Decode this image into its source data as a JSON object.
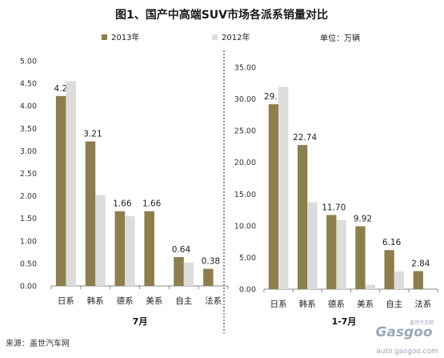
{
  "title": "图1、国产中高端SUV市场各派系销量对比",
  "unit_label": "单位：万辆",
  "source": "来源：盖世汽车网",
  "watermark": {
    "logo": "Gasgoo",
    "small_text": "盖世汽车网",
    "url": "auto.gasgoo.com"
  },
  "colors": {
    "series_2013": "#8c7f4b",
    "series_2012": "#dcdcdc",
    "divider": "#222222"
  },
  "chart_data": [
    {
      "type": "bar",
      "xlabel": "7月",
      "ylabel": "",
      "categories": [
        "日系",
        "韩系",
        "德系",
        "美系",
        "自主",
        "法系"
      ],
      "ylim": [
        0,
        5
      ],
      "yticks": [
        "5.00",
        "4.50",
        "4.00",
        "3.50",
        "3.00",
        "2.50",
        "2.00",
        "1.50",
        "1.00",
        "0.50",
        "0.00"
      ],
      "series": [
        {
          "name": "2013年",
          "values": [
            4.22,
            3.21,
            1.66,
            1.66,
            0.64,
            0.38
          ],
          "labels": [
            "4.22",
            "3.21",
            "1.66",
            "1.66",
            "0.64",
            "0.38"
          ]
        },
        {
          "name": "2012年",
          "values": [
            4.55,
            2.02,
            1.55,
            0.0,
            0.52,
            0.0
          ]
        }
      ]
    },
    {
      "type": "bar",
      "xlabel": "1-7月",
      "ylabel": "",
      "categories": [
        "日系",
        "韩系",
        "德系",
        "美系",
        "自主",
        "法系"
      ],
      "ylim": [
        0,
        35
      ],
      "yticks": [
        "35.00",
        "30.00",
        "25.00",
        "20.00",
        "15.00",
        "10.00",
        "5.00",
        "0.00"
      ],
      "series": [
        {
          "name": "2013年",
          "values": [
            29.17,
            22.74,
            11.7,
            9.92,
            6.16,
            2.84
          ],
          "labels": [
            "29.17",
            "22.74",
            "11.70",
            "9.92",
            "6.16",
            "2.84"
          ]
        },
        {
          "name": "2012年",
          "values": [
            31.9,
            13.7,
            10.9,
            0.7,
            2.8,
            0.0
          ]
        }
      ]
    }
  ]
}
